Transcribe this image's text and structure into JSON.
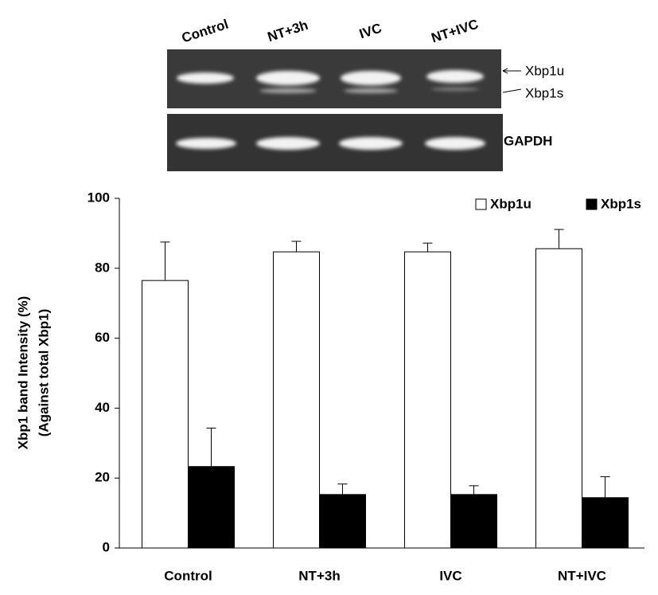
{
  "chart_data": {
    "type": "bar",
    "ylabel": [
      "Xbp1 band Intensity (%)",
      "(Against total Xbp1)"
    ],
    "categories": [
      "Control",
      "NT+3h",
      "IVC",
      "NT+IVC"
    ],
    "series": [
      {
        "name": "Xbp1u",
        "color": "#ffffff",
        "values": [
          76.5,
          84.7,
          84.7,
          85.6
        ],
        "errors": [
          11,
          3,
          2.5,
          5.5
        ]
      },
      {
        "name": "Xbp1s",
        "color": "#000000",
        "values": [
          23.3,
          15.3,
          15.3,
          14.4
        ],
        "errors": [
          11,
          3,
          2.5,
          6
        ]
      }
    ],
    "ylim": [
      0,
      100
    ],
    "yticks": [
      0,
      20,
      40,
      60,
      80,
      100
    ],
    "grid": false,
    "legend": "top-right"
  },
  "blot": {
    "loading_control": "GAPDH"
  }
}
